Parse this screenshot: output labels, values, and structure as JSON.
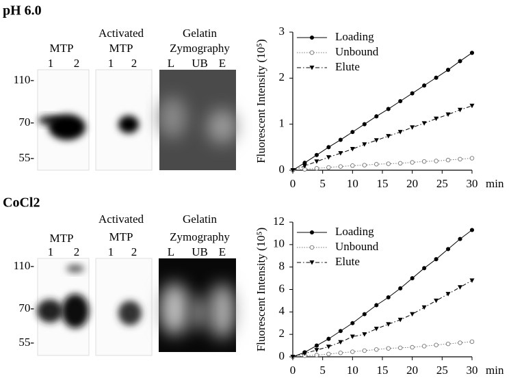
{
  "panels": [
    {
      "title": "pH 6.0",
      "markers": [
        "110-",
        "70-",
        "55-"
      ],
      "blots": [
        {
          "title": [
            "MTP"
          ],
          "lanes": [
            "1",
            "2"
          ]
        },
        {
          "title": [
            "Activated",
            "MTP"
          ],
          "lanes": [
            "1",
            "2"
          ]
        },
        {
          "title": [
            "Gelatin",
            "Zymography"
          ],
          "lanes": [
            "L",
            "UB",
            "E"
          ]
        }
      ]
    },
    {
      "title": "CoCl2",
      "markers": [
        "110-",
        "70-",
        "55-"
      ],
      "blots": [
        {
          "title": [
            "MTP"
          ],
          "lanes": [
            "1",
            "2"
          ]
        },
        {
          "title": [
            "Activated",
            "MTP"
          ],
          "lanes": [
            "1",
            "2"
          ]
        },
        {
          "title": [
            "Gelatin",
            "Zymography"
          ],
          "lanes": [
            "L",
            "UB",
            "E"
          ]
        }
      ]
    }
  ],
  "chart_data": [
    {
      "type": "line",
      "y_label": "Fluorescent Intensity (10⁵)",
      "x_label": "min",
      "x": [
        0,
        2,
        4,
        6,
        8,
        10,
        12,
        14,
        16,
        18,
        20,
        22,
        24,
        26,
        28,
        30
      ],
      "xlim": [
        0,
        30
      ],
      "xticks": [
        0,
        5,
        10,
        15,
        20,
        25,
        30
      ],
      "ylim": [
        0,
        3
      ],
      "yticks": [
        0,
        1,
        2,
        3
      ],
      "grid": false,
      "legend": "upper left",
      "series": [
        {
          "name": "Loading",
          "color": "#000000",
          "marker": "circle-filled",
          "dash": "solid",
          "values": [
            0,
            0.16,
            0.33,
            0.5,
            0.66,
            0.83,
            1.0,
            1.17,
            1.33,
            1.5,
            1.67,
            1.84,
            2.01,
            2.18,
            2.37,
            2.55
          ]
        },
        {
          "name": "Unbound",
          "color": "#777777",
          "marker": "circle-open",
          "dash": "dotted",
          "values": [
            0,
            0.02,
            0.04,
            0.06,
            0.08,
            0.1,
            0.11,
            0.13,
            0.14,
            0.15,
            0.17,
            0.19,
            0.2,
            0.22,
            0.24,
            0.26
          ]
        },
        {
          "name": "Elute",
          "color": "#000000",
          "marker": "triangle-down",
          "dash": "dashdot",
          "values": [
            0,
            0.09,
            0.19,
            0.28,
            0.37,
            0.46,
            0.56,
            0.65,
            0.74,
            0.83,
            0.93,
            1.02,
            1.12,
            1.21,
            1.31,
            1.4
          ]
        }
      ]
    },
    {
      "type": "line",
      "y_label": "Fluorescent Intensity (10⁵)",
      "x_label": "min",
      "x": [
        0,
        2,
        4,
        6,
        8,
        10,
        12,
        14,
        16,
        18,
        20,
        22,
        24,
        26,
        28,
        30
      ],
      "xlim": [
        0,
        30
      ],
      "xticks": [
        0,
        5,
        10,
        15,
        20,
        25,
        30
      ],
      "ylim": [
        0,
        12
      ],
      "yticks": [
        0,
        2,
        4,
        6,
        8,
        10,
        12
      ],
      "grid": false,
      "legend": "upper left",
      "series": [
        {
          "name": "Loading",
          "color": "#000000",
          "marker": "circle-filled",
          "dash": "solid",
          "values": [
            0,
            0.4,
            1.0,
            1.6,
            2.3,
            3.0,
            3.8,
            4.6,
            5.3,
            6.1,
            7.0,
            7.9,
            8.7,
            9.6,
            10.5,
            11.3
          ]
        },
        {
          "name": "Unbound",
          "color": "#777777",
          "marker": "circle-open",
          "dash": "dotted",
          "values": [
            0,
            0.1,
            0.15,
            0.25,
            0.35,
            0.45,
            0.55,
            0.65,
            0.75,
            0.8,
            0.85,
            0.95,
            1.05,
            1.15,
            1.25,
            1.35
          ]
        },
        {
          "name": "Elute",
          "color": "#000000",
          "marker": "triangle-down",
          "dash": "dashdot",
          "values": [
            0,
            0.3,
            0.6,
            0.9,
            1.3,
            1.8,
            2.0,
            2.5,
            2.9,
            3.3,
            3.8,
            4.4,
            5.0,
            5.6,
            6.2,
            6.8
          ]
        }
      ]
    }
  ]
}
